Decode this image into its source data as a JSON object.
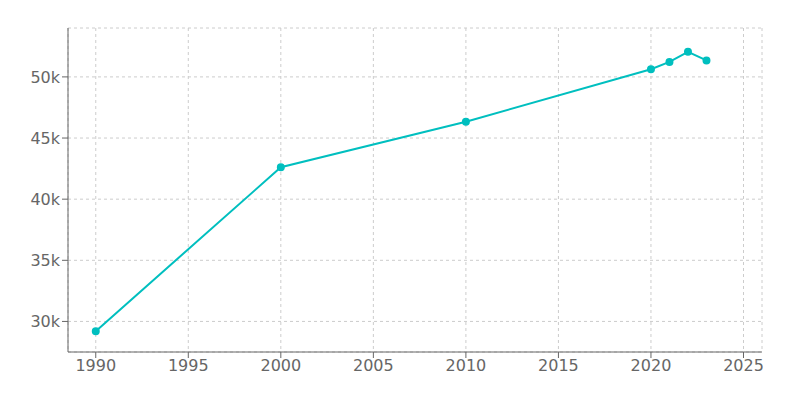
{
  "chart_data": {
    "type": "line",
    "x": [
      1990,
      2000,
      2010,
      2020,
      2021,
      2022,
      2023
    ],
    "values": [
      29205,
      42612,
      46334,
      50631,
      51226,
      52051,
      51349
    ],
    "color": "#00BFBF",
    "marker": "circle",
    "xlim": [
      1988.5,
      2026
    ],
    "ylim": [
      27500,
      54000
    ],
    "xticks": [
      1990,
      1995,
      2000,
      2005,
      2010,
      2015,
      2020,
      2025
    ],
    "yticks": [
      {
        "value": 30000,
        "label": "30k"
      },
      {
        "value": 35000,
        "label": "35k"
      },
      {
        "value": 40000,
        "label": "40k"
      },
      {
        "value": 45000,
        "label": "45k"
      },
      {
        "value": 50000,
        "label": "50k"
      }
    ],
    "grid": true
  }
}
